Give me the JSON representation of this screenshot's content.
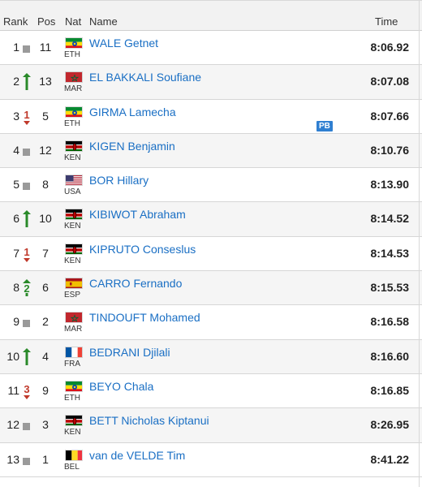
{
  "header": {
    "rank": "Rank",
    "pos": "Pos",
    "nat": "Nat",
    "name": "Name",
    "time": "Time"
  },
  "colors": {
    "up": "#2a8a2a",
    "down": "#c0392b",
    "same": "#9a9a9a",
    "link": "#1a6fc4",
    "pb": "#2f7fd1"
  },
  "rows": [
    {
      "rank": "1",
      "move": "same",
      "move_count": "",
      "pos": "11",
      "nat": "ETH",
      "name": "WALE Getnet",
      "time": "8:06.92",
      "badge": ""
    },
    {
      "rank": "2",
      "move": "up",
      "move_count": "1",
      "pos": "13",
      "nat": "MAR",
      "name": "EL BAKKALI Soufiane",
      "time": "8:07.08",
      "badge": ""
    },
    {
      "rank": "3",
      "move": "down",
      "move_count": "1",
      "pos": "5",
      "nat": "ETH",
      "name": "GIRMA Lamecha",
      "time": "8:07.66",
      "badge": "PB"
    },
    {
      "rank": "4",
      "move": "same",
      "move_count": "",
      "pos": "12",
      "nat": "KEN",
      "name": "KIGEN Benjamin",
      "time": "8:10.76",
      "badge": ""
    },
    {
      "rank": "5",
      "move": "same",
      "move_count": "",
      "pos": "8",
      "nat": "USA",
      "name": "BOR Hillary",
      "time": "8:13.90",
      "badge": ""
    },
    {
      "rank": "6",
      "move": "up",
      "move_count": "1",
      "pos": "10",
      "nat": "KEN",
      "name": "KIBIWOT Abraham",
      "time": "8:14.52",
      "badge": ""
    },
    {
      "rank": "7",
      "move": "down",
      "move_count": "1",
      "pos": "7",
      "nat": "KEN",
      "name": "KIPRUTO Conseslus",
      "time": "8:14.53",
      "badge": ""
    },
    {
      "rank": "8",
      "move": "up",
      "move_count": "2",
      "pos": "6",
      "nat": "ESP",
      "name": "CARRO Fernando",
      "time": "8:15.53",
      "badge": ""
    },
    {
      "rank": "9",
      "move": "same",
      "move_count": "",
      "pos": "2",
      "nat": "MAR",
      "name": "TINDOUFT Mohamed",
      "time": "8:16.58",
      "badge": ""
    },
    {
      "rank": "10",
      "move": "up",
      "move_count": "1",
      "pos": "4",
      "nat": "FRA",
      "name": "BEDRANI Djilali",
      "time": "8:16.60",
      "badge": ""
    },
    {
      "rank": "11",
      "move": "down",
      "move_count": "3",
      "pos": "9",
      "nat": "ETH",
      "name": "BEYO Chala",
      "time": "8:16.85",
      "badge": ""
    },
    {
      "rank": "12",
      "move": "same",
      "move_count": "",
      "pos": "3",
      "nat": "KEN",
      "name": "BETT Nicholas Kiptanui",
      "time": "8:26.95",
      "badge": ""
    },
    {
      "rank": "13",
      "move": "same",
      "move_count": "",
      "pos": "1",
      "nat": "BEL",
      "name": "van de VELDE Tim",
      "time": "8:41.22",
      "badge": ""
    }
  ]
}
